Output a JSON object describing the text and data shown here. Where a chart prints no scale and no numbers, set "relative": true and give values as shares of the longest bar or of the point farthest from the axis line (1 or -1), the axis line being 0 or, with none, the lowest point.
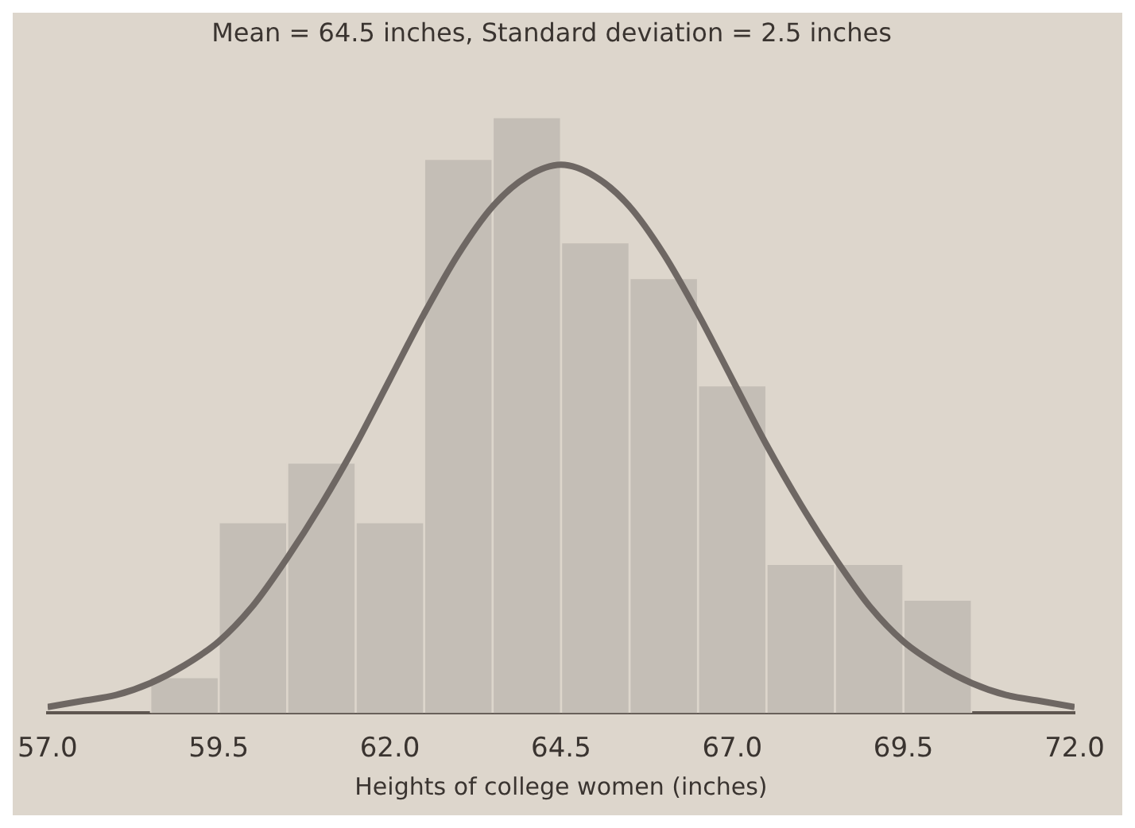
{
  "chart_data": {
    "type": "histogram",
    "title": "Mean = 64.5 inches, Standard deviation = 2.5 inches",
    "xlabel": "Heights of college women (inches)",
    "relative": true,
    "bins": [
      58.5,
      59.5,
      60.5,
      61.5,
      62.5,
      63.5,
      64.5,
      65.5,
      66.5,
      67.5,
      68.5,
      69.5,
      70.5
    ],
    "xlim": [
      57,
      72
    ],
    "xticks": [
      {
        "value": 57,
        "label": "57.0"
      },
      {
        "value": 59.5,
        "label": "59.5"
      },
      {
        "value": 62,
        "label": "62.0"
      },
      {
        "value": 64.5,
        "label": "64.5"
      },
      {
        "value": 67,
        "label": "67.0"
      },
      {
        "value": 69.5,
        "label": "69.5"
      },
      {
        "value": 72,
        "label": "72.0"
      }
    ],
    "grid": false,
    "legend": false,
    "series": [
      {
        "type": "histogram",
        "color": "#c4beb6",
        "values": [
          0.06,
          0.32,
          0.42,
          0.32,
          0.93,
          1.0,
          0.79,
          0.73,
          0.55,
          0.25,
          0.25,
          0.19
        ]
      },
      {
        "type": "line",
        "color": "#6e6763",
        "x": [
          57,
          57.5,
          58,
          58.5,
          59,
          59.5,
          60,
          60.5,
          61,
          61.5,
          62,
          62.5,
          63,
          63.5,
          64,
          64.5,
          65,
          65.5,
          66,
          66.5,
          67,
          67.5,
          68,
          68.5,
          69,
          69.5,
          70,
          70.5,
          71,
          71.5,
          72
        ],
        "values": [
          0.01,
          0.02,
          0.03,
          0.05,
          0.08,
          0.12,
          0.18,
          0.26,
          0.35,
          0.45,
          0.56,
          0.67,
          0.77,
          0.85,
          0.9,
          0.92,
          0.9,
          0.85,
          0.77,
          0.67,
          0.56,
          0.45,
          0.35,
          0.26,
          0.18,
          0.12,
          0.08,
          0.05,
          0.03,
          0.02,
          0.01
        ]
      }
    ]
  }
}
